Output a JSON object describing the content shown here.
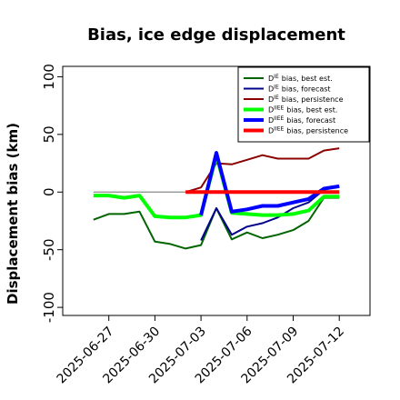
{
  "chart_data": {
    "type": "line",
    "title": "Bias, ice edge displacement",
    "y_label": "Displacement bias (km)",
    "x": [
      "2025-06-26",
      "2025-06-27",
      "2025-06-28",
      "2025-06-29",
      "2025-06-30",
      "2025-07-01",
      "2025-07-02",
      "2025-07-03",
      "2025-07-04",
      "2025-07-05",
      "2025-07-06",
      "2025-07-07",
      "2025-07-08",
      "2025-07-09",
      "2025-07-10",
      "2025-07-11",
      "2025-07-12"
    ],
    "xlim": [
      "2025-06-24",
      "2025-07-14"
    ],
    "xticks": [
      "2025-06-27",
      "2025-06-30",
      "2025-07-03",
      "2025-07-06",
      "2025-07-09",
      "2025-07-12"
    ],
    "highlight_tick": "2025-07-03",
    "highlight_color": "#2e8b2e",
    "ylim": [
      -107,
      109
    ],
    "yticks": [
      -100,
      -50,
      0,
      50,
      100
    ],
    "hline": {
      "value": 0,
      "color": "#888888"
    },
    "legend": "upper right",
    "series": [
      {
        "symbol": "D",
        "sup": "IE",
        "name": "bias, best est.",
        "color": "#006400",
        "width": 2,
        "values": [
          -24,
          -19,
          -19,
          -17,
          -43,
          -45,
          -49,
          -46,
          -14,
          -41,
          -35,
          -40,
          -37,
          -33,
          -25,
          -5,
          -5
        ]
      },
      {
        "symbol": "D",
        "sup": "IE",
        "name": "bias, forecast",
        "color": "#00008b",
        "width": 2,
        "values": [
          null,
          null,
          null,
          null,
          null,
          null,
          null,
          -42,
          -14,
          -37,
          -30,
          -27,
          -22,
          -14,
          -9,
          2,
          5
        ]
      },
      {
        "symbol": "D",
        "sup": "IE",
        "name": "bias, persistence",
        "color": "#8b0000",
        "width": 2,
        "values": [
          null,
          null,
          null,
          null,
          null,
          null,
          0,
          4,
          25,
          24,
          28,
          32,
          29,
          29,
          29,
          36,
          38
        ]
      },
      {
        "symbol": "D",
        "sup": "IIEE",
        "name": "bias, best est.",
        "color": "#00ff00",
        "width": 4,
        "values": [
          -3,
          -3,
          -5,
          -3,
          -21,
          -22,
          -22,
          -20,
          32,
          -18,
          -19,
          -20,
          -20,
          -19,
          -16,
          -4,
          -4
        ]
      },
      {
        "symbol": "D",
        "sup": "IIEE",
        "name": "bias, forecast",
        "color": "#0000ff",
        "width": 4,
        "values": [
          null,
          null,
          null,
          null,
          null,
          null,
          null,
          -20,
          34,
          -17,
          -15,
          -12,
          -12,
          -9,
          -6,
          3,
          5
        ]
      },
      {
        "symbol": "D",
        "sup": "IIEE",
        "name": "bias, persistence",
        "color": "#ff0000",
        "width": 4,
        "values": [
          null,
          null,
          null,
          null,
          null,
          null,
          0,
          0,
          0,
          0,
          0,
          0,
          0,
          0,
          0,
          0,
          0
        ]
      }
    ]
  }
}
